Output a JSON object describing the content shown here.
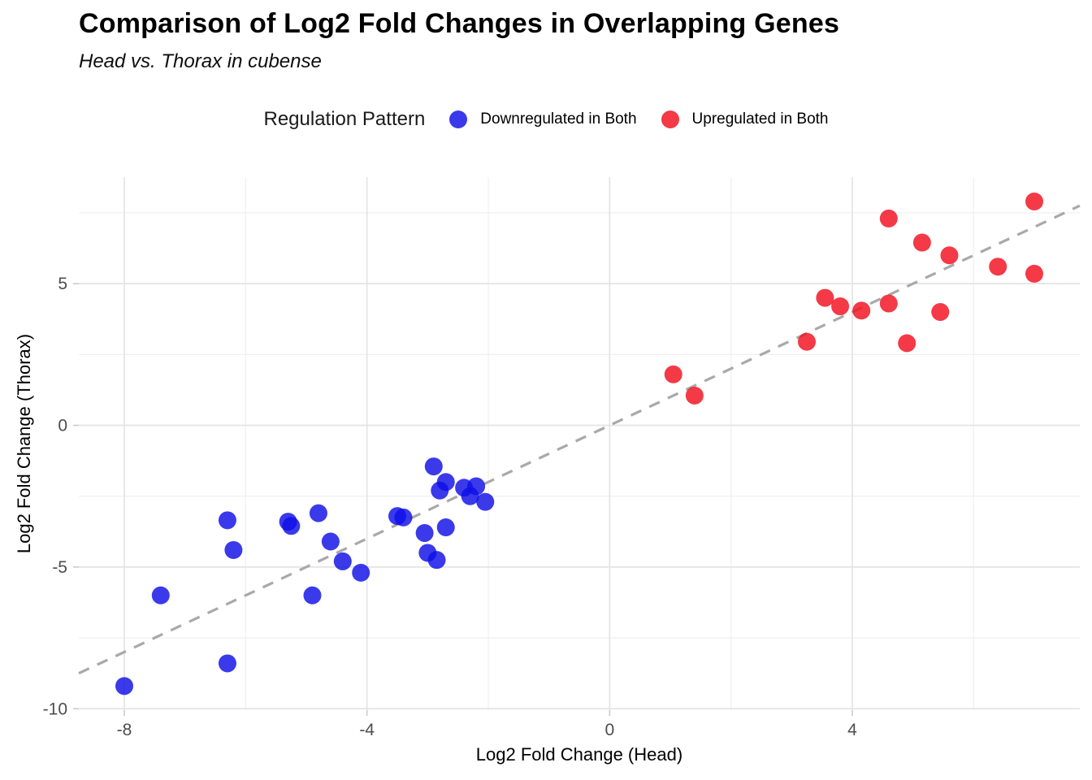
{
  "header": {
    "title": "Comparison of Log2 Fold Changes in Overlapping Genes",
    "subtitle": "Head vs. Thorax in cubense"
  },
  "legend": {
    "title": "Regulation Pattern",
    "items": [
      {
        "label": "Downregulated in Both",
        "color": "#0f0fe6"
      },
      {
        "label": "Upregulated in Both",
        "color": "#f20d1e"
      }
    ]
  },
  "axes": {
    "xlabel": "Log2 Fold Change (Head)",
    "ylabel": "Log2 Fold Change (Thorax)"
  },
  "chart_data": {
    "type": "scatter",
    "title": "Comparison of Log2 Fold Changes in Overlapping Genes",
    "subtitle": "Head vs. Thorax in cubense",
    "xlabel": "Log2 Fold Change (Head)",
    "ylabel": "Log2 Fold Change (Thorax)",
    "xlim": [
      -8.75,
      7.75
    ],
    "ylim": [
      -10.05,
      8.76
    ],
    "x_ticks": [
      -8,
      -4,
      0,
      4
    ],
    "y_ticks": [
      -10,
      -5,
      0,
      5
    ],
    "x_minor_ticks": [
      -6,
      -2,
      2,
      6
    ],
    "y_minor_ticks": [
      -7.5,
      -2.5,
      2.5,
      7.5
    ],
    "grid": true,
    "legend_title": "Regulation Pattern",
    "legend_position": "top",
    "reference_line": {
      "type": "identity",
      "slope": 1,
      "intercept": 0,
      "style": "dashed",
      "color": "#a9a9a9"
    },
    "point_opacity": 0.82,
    "series": [
      {
        "name": "Downregulated in Both",
        "color": "#0f0fe6",
        "points": [
          [
            -8.0,
            -9.2
          ],
          [
            -7.4,
            -6.0
          ],
          [
            -6.3,
            -8.4
          ],
          [
            -6.3,
            -3.35
          ],
          [
            -6.2,
            -4.4
          ],
          [
            -5.3,
            -3.4
          ],
          [
            -5.25,
            -3.55
          ],
          [
            -4.9,
            -6.0
          ],
          [
            -4.8,
            -3.1
          ],
          [
            -4.6,
            -4.1
          ],
          [
            -4.4,
            -4.8
          ],
          [
            -4.1,
            -5.2
          ],
          [
            -3.5,
            -3.2
          ],
          [
            -3.4,
            -3.25
          ],
          [
            -3.05,
            -3.8
          ],
          [
            -3.0,
            -4.5
          ],
          [
            -2.9,
            -1.45
          ],
          [
            -2.85,
            -4.75
          ],
          [
            -2.8,
            -2.3
          ],
          [
            -2.7,
            -2.0
          ],
          [
            -2.7,
            -3.6
          ],
          [
            -2.4,
            -2.2
          ],
          [
            -2.3,
            -2.5
          ],
          [
            -2.2,
            -2.15
          ],
          [
            -2.05,
            -2.7
          ]
        ]
      },
      {
        "name": "Upregulated in Both",
        "color": "#f20d1e",
        "points": [
          [
            1.05,
            1.8
          ],
          [
            1.4,
            1.05
          ],
          [
            3.25,
            2.95
          ],
          [
            3.55,
            4.5
          ],
          [
            3.8,
            4.2
          ],
          [
            4.15,
            4.05
          ],
          [
            4.6,
            4.3
          ],
          [
            4.6,
            7.3
          ],
          [
            4.9,
            2.9
          ],
          [
            5.15,
            6.45
          ],
          [
            5.45,
            4.0
          ],
          [
            5.6,
            6.0
          ],
          [
            6.4,
            5.6
          ],
          [
            7.0,
            5.35
          ],
          [
            7.0,
            7.9
          ]
        ]
      }
    ]
  }
}
